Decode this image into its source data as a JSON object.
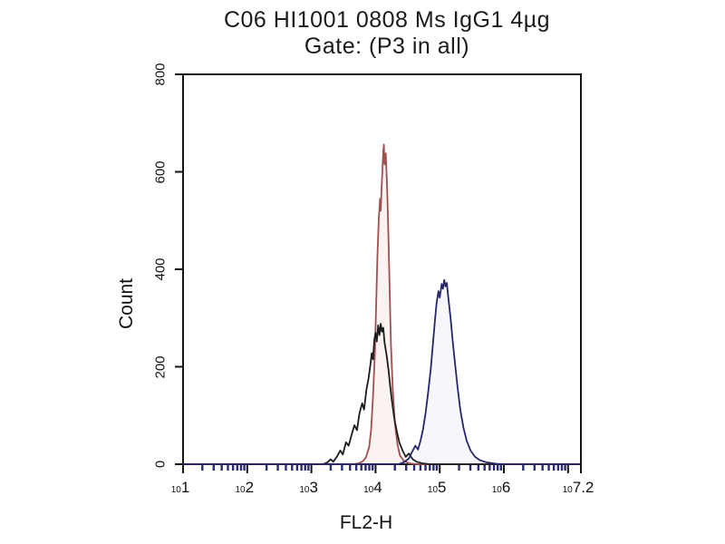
{
  "title": {
    "line1": "C06 HI1001 0808 Ms IgG1 4µg",
    "line2": "Gate: (P3 in all)"
  },
  "colors": {
    "frame": "#141414",
    "major_tick": "#141414",
    "minor_tick": "#2b2b72",
    "red_series": "#a05050",
    "black_series": "#1c1c1c",
    "blue_series": "#26266b",
    "background": "#ffffff"
  },
  "chart_data": {
    "type": "line",
    "subtype": "flow-cytometry-histogram-overlay",
    "title": "C06 HI1001 0808 Ms IgG1 4µg",
    "subtitle": "Gate: (P3 in all)",
    "xlabel": "FL2-H",
    "ylabel": "Count",
    "x_scale": "log10",
    "x_range_decades": [
      1,
      7.2
    ],
    "ylim": [
      0,
      800
    ],
    "grid": "off",
    "legend": "none",
    "y_ticks": [
      0,
      200,
      400,
      600,
      800
    ],
    "x_major_tick_decades": [
      1,
      2,
      3,
      4,
      5,
      6,
      7,
      7.2
    ],
    "x_tick_labels": [
      {
        "dec": 1,
        "exp": "1"
      },
      {
        "dec": 2,
        "exp": "2"
      },
      {
        "dec": 3,
        "exp": "3"
      },
      {
        "dec": 4,
        "exp": "4"
      },
      {
        "dec": 5,
        "exp": "5"
      },
      {
        "dec": 6,
        "exp": "6"
      },
      {
        "dec": 7.2,
        "exp": "7.2"
      }
    ],
    "series": [
      {
        "name": "red-control-histogram",
        "color": "#a05050",
        "fill": "rgba(216,130,130,0.10)",
        "peak_x_log10": 4.13,
        "peak_count": 656,
        "points": [
          [
            1,
            0
          ],
          [
            3.66,
            0
          ],
          [
            3.74,
            2
          ],
          [
            3.8,
            6
          ],
          [
            3.85,
            14
          ],
          [
            3.9,
            35
          ],
          [
            3.93,
            70
          ],
          [
            3.96,
            140
          ],
          [
            3.99,
            230
          ],
          [
            4.01,
            330
          ],
          [
            4.03,
            430
          ],
          [
            4.05,
            505
          ],
          [
            4.07,
            545
          ],
          [
            4.08,
            520
          ],
          [
            4.1,
            585
          ],
          [
            4.12,
            640
          ],
          [
            4.13,
            656
          ],
          [
            4.14,
            615
          ],
          [
            4.16,
            638
          ],
          [
            4.18,
            565
          ],
          [
            4.2,
            470
          ],
          [
            4.22,
            355
          ],
          [
            4.24,
            245
          ],
          [
            4.27,
            150
          ],
          [
            4.3,
            85
          ],
          [
            4.34,
            42
          ],
          [
            4.38,
            18
          ],
          [
            4.44,
            7
          ],
          [
            4.52,
            2
          ],
          [
            4.62,
            0
          ],
          [
            7.2,
            0
          ]
        ]
      },
      {
        "name": "black-isotype-histogram",
        "color": "#1c1c1c",
        "fill": "none",
        "peak_x_log10": 4.08,
        "peak_count": 288,
        "points": [
          [
            1,
            0
          ],
          [
            3.18,
            0
          ],
          [
            3.24,
            3
          ],
          [
            3.3,
            10
          ],
          [
            3.34,
            5
          ],
          [
            3.4,
            16
          ],
          [
            3.45,
            28
          ],
          [
            3.49,
            20
          ],
          [
            3.54,
            45
          ],
          [
            3.58,
            38
          ],
          [
            3.63,
            62
          ],
          [
            3.67,
            80
          ],
          [
            3.71,
            70
          ],
          [
            3.75,
            105
          ],
          [
            3.79,
            125
          ],
          [
            3.82,
            112
          ],
          [
            3.86,
            155
          ],
          [
            3.89,
            175
          ],
          [
            3.92,
            205
          ],
          [
            3.94,
            228
          ],
          [
            3.96,
            215
          ],
          [
            3.98,
            255
          ],
          [
            4.0,
            270
          ],
          [
            4.02,
            252
          ],
          [
            4.04,
            285
          ],
          [
            4.06,
            265
          ],
          [
            4.08,
            288
          ],
          [
            4.1,
            272
          ],
          [
            4.12,
            280
          ],
          [
            4.14,
            250
          ],
          [
            4.17,
            225
          ],
          [
            4.2,
            195
          ],
          [
            4.23,
            158
          ],
          [
            4.26,
            125
          ],
          [
            4.29,
            95
          ],
          [
            4.33,
            68
          ],
          [
            4.37,
            45
          ],
          [
            4.42,
            28
          ],
          [
            4.47,
            15
          ],
          [
            4.52,
            22
          ],
          [
            4.58,
            10
          ],
          [
            4.64,
            5
          ],
          [
            4.72,
            2
          ],
          [
            4.85,
            0
          ],
          [
            7.2,
            0
          ]
        ]
      },
      {
        "name": "blue-stained-histogram",
        "color": "#26266b",
        "fill": "rgba(140,140,210,0.08)",
        "peak_x_log10": 5.07,
        "peak_count": 378,
        "points": [
          [
            1,
            0
          ],
          [
            4.36,
            0
          ],
          [
            4.44,
            4
          ],
          [
            4.52,
            12
          ],
          [
            4.58,
            28
          ],
          [
            4.62,
            38
          ],
          [
            4.66,
            30
          ],
          [
            4.7,
            48
          ],
          [
            4.74,
            72
          ],
          [
            4.78,
            105
          ],
          [
            4.82,
            148
          ],
          [
            4.86,
            195
          ],
          [
            4.89,
            240
          ],
          [
            4.92,
            288
          ],
          [
            4.95,
            330
          ],
          [
            4.98,
            355
          ],
          [
            5.0,
            342
          ],
          [
            5.03,
            370
          ],
          [
            5.05,
            360
          ],
          [
            5.07,
            378
          ],
          [
            5.09,
            365
          ],
          [
            5.11,
            372
          ],
          [
            5.14,
            335
          ],
          [
            5.17,
            298
          ],
          [
            5.2,
            255
          ],
          [
            5.24,
            205
          ],
          [
            5.28,
            155
          ],
          [
            5.32,
            112
          ],
          [
            5.37,
            75
          ],
          [
            5.42,
            48
          ],
          [
            5.48,
            28
          ],
          [
            5.55,
            15
          ],
          [
            5.63,
            8
          ],
          [
            5.73,
            4
          ],
          [
            5.88,
            1
          ],
          [
            6.05,
            0
          ],
          [
            7.2,
            0
          ]
        ]
      }
    ]
  }
}
